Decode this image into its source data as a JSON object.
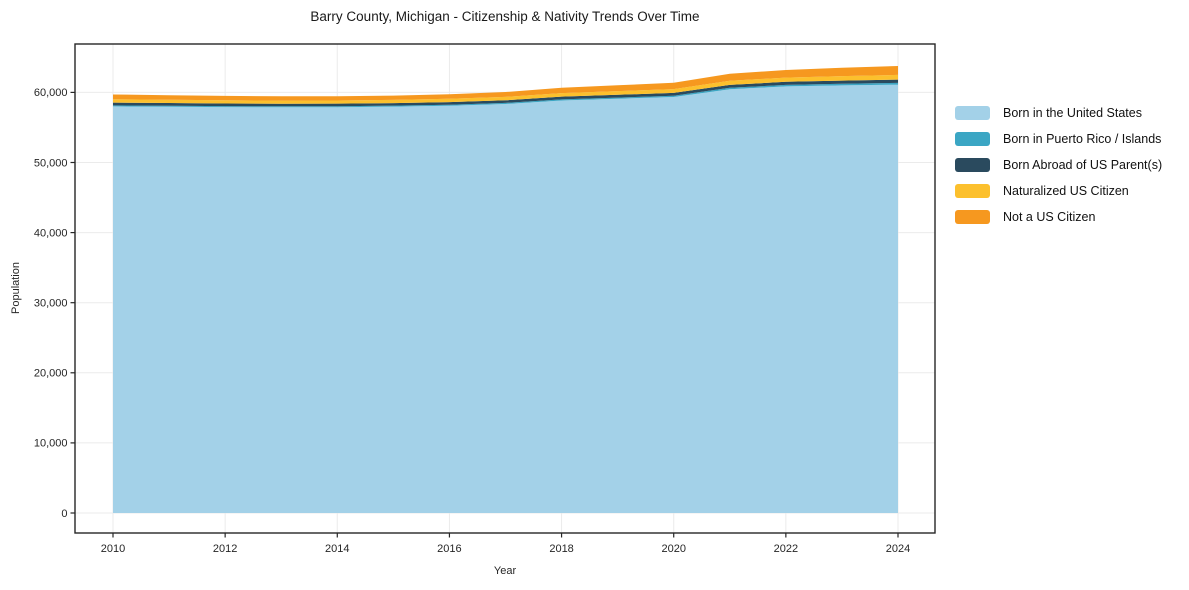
{
  "chart_data": {
    "type": "area",
    "stacked": true,
    "title": "Barry County, Michigan - Citizenship & Nativity Trends Over Time",
    "xlabel": "Year",
    "ylabel": "Population",
    "legend_position": "right",
    "grid": true,
    "xlim": [
      2010,
      2024
    ],
    "ylim": [
      0,
      66000
    ],
    "x": [
      2010,
      2011,
      2012,
      2013,
      2014,
      2015,
      2016,
      2017,
      2018,
      2019,
      2020,
      2021,
      2022,
      2023,
      2024
    ],
    "series": [
      {
        "name": "Born in the United States",
        "color": "#a3d1e8",
        "values": [
          58000,
          57950,
          57900,
          57870,
          57890,
          57970,
          58100,
          58350,
          58850,
          59100,
          59350,
          60450,
          60850,
          61000,
          61100
        ]
      },
      {
        "name": "Born in Puerto Rico / Islands",
        "color": "#3ba6c4",
        "values": [
          150,
          145,
          140,
          140,
          140,
          140,
          145,
          150,
          155,
          165,
          175,
          200,
          220,
          240,
          260
        ]
      },
      {
        "name": "Born Abroad of US Parent(s)",
        "color": "#2a4a5e",
        "values": [
          400,
          390,
          380,
          370,
          370,
          370,
          375,
          380,
          390,
          395,
          405,
          420,
          435,
          450,
          460
        ]
      },
      {
        "name": "Naturalized US Citizen",
        "color": "#fcc02d",
        "values": [
          480,
          465,
          455,
          445,
          445,
          450,
          465,
          480,
          500,
          520,
          545,
          580,
          610,
          640,
          670
        ]
      },
      {
        "name": "Not a US Citizen",
        "color": "#f6981f",
        "values": [
          670,
          650,
          630,
          615,
          610,
          620,
          650,
          700,
          760,
          830,
          900,
          1000,
          1080,
          1180,
          1280
        ]
      }
    ],
    "x_ticks": [
      {
        "value": 2010,
        "label": "2010"
      },
      {
        "value": 2012,
        "label": "2012"
      },
      {
        "value": 2014,
        "label": "2014"
      },
      {
        "value": 2016,
        "label": "2016"
      },
      {
        "value": 2018,
        "label": "2018"
      },
      {
        "value": 2020,
        "label": "2020"
      },
      {
        "value": 2022,
        "label": "2022"
      },
      {
        "value": 2024,
        "label": "2024"
      }
    ],
    "y_ticks": [
      {
        "value": 0,
        "label": "0"
      },
      {
        "value": 10000,
        "label": "10,000"
      },
      {
        "value": 20000,
        "label": "20,000"
      },
      {
        "value": 30000,
        "label": "30,000"
      },
      {
        "value": 40000,
        "label": "40,000"
      },
      {
        "value": 50000,
        "label": "50,000"
      },
      {
        "value": 60000,
        "label": "60,000"
      }
    ],
    "colors": {
      "spine": "#262626",
      "grid": "#ebebeb",
      "tick_text": "#262626"
    }
  }
}
